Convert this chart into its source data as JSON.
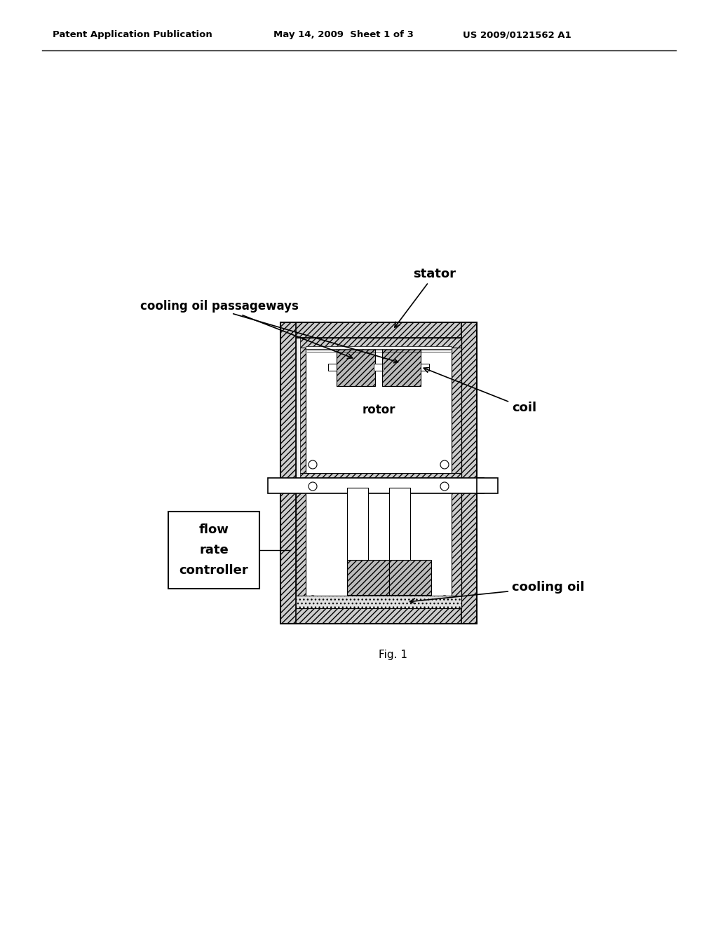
{
  "bg_color": "#ffffff",
  "header_left": "Patent Application Publication",
  "header_mid": "May 14, 2009  Sheet 1 of 3",
  "header_right": "US 2009/0121562 A1",
  "fig_label": "Fig. 1",
  "labels": {
    "stator": "stator",
    "cooling_oil_passageways": "cooling oil passageways",
    "coil": "coil",
    "rotor": "rotor",
    "flow_rate_controller": "flow\nrate\ncontroller",
    "cooling_oil": "cooling oil"
  },
  "colors": {
    "hatch_fill": "#d8d8d8",
    "white": "#ffffff",
    "black": "#000000",
    "light_gray": "#e8e8e8"
  }
}
